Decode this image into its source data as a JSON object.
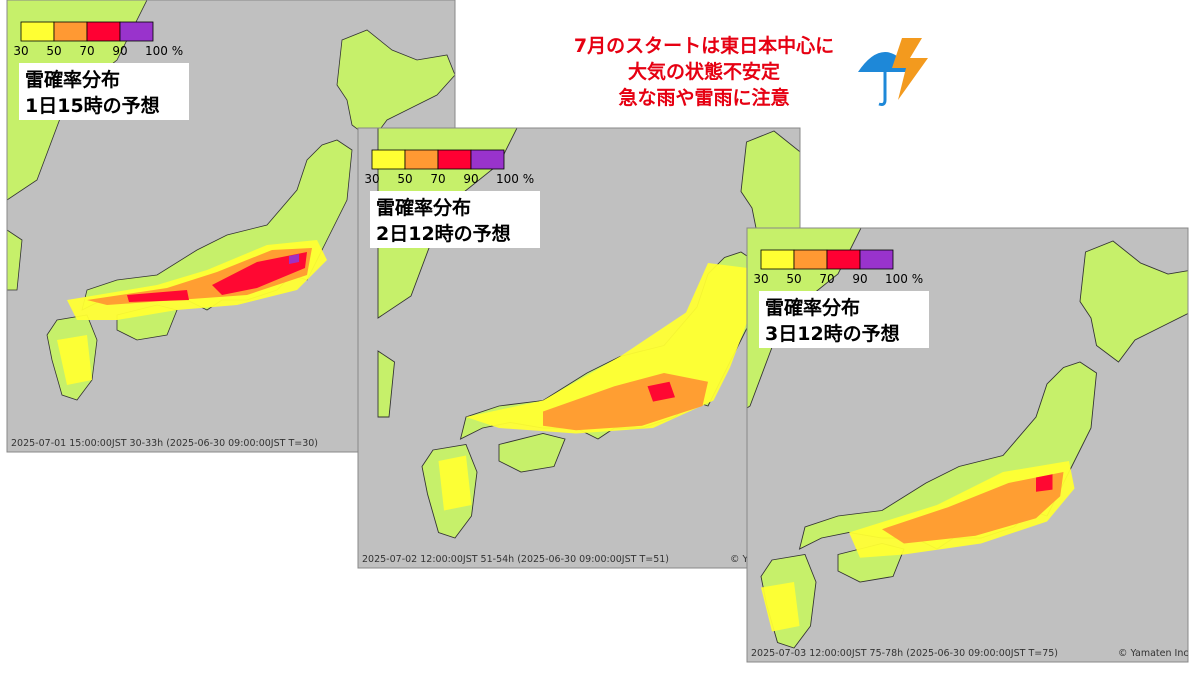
{
  "headline": {
    "lines": [
      "7月のスタートは東日本中心に",
      "大気の状態不安定",
      "急な雨や雷雨に注意"
    ]
  },
  "legend": {
    "labels": [
      "30",
      "50",
      "70",
      "90",
      "100 %"
    ],
    "colors": [
      "#ffff33",
      "#ff9933",
      "#ff0033",
      "#9933cc"
    ]
  },
  "panels": [
    {
      "title": "雷確率分布",
      "subtitle": "1日15時の予想",
      "footer": "2025-07-01 15:00:00JST 30-33h (2025-06-30 09:00:00JST T=30)"
    },
    {
      "title": "雷確率分布",
      "subtitle": "2日12時の予想",
      "footer": "2025-07-02 12:00:00JST 51-54h (2025-06-30 09:00:00JST T=51)",
      "credit": "© Yamaten Inc."
    },
    {
      "title": "雷確率分布",
      "subtitle": "3日12時の予想",
      "footer": "2025-07-03 12:00:00JST 75-78h (2025-06-30 09:00:00JST T=75)",
      "credit": "© Yamaten Inc."
    }
  ]
}
